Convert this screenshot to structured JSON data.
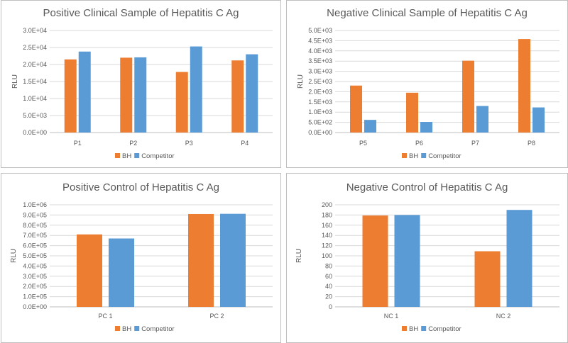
{
  "colors": {
    "BH": "#ED7D31",
    "Competitor": "#5B9BD5",
    "grid": "#d9d9d9",
    "axis": "#bfbfbf"
  },
  "chart_data": [
    {
      "type": "bar",
      "title": "Positive Clinical Sample of Hepatitis C Ag",
      "ylabel": "RLU",
      "categories": [
        "P1",
        "P2",
        "P3",
        "P4"
      ],
      "ylim": [
        0,
        30000
      ],
      "yticks": [
        "0.0E+00",
        "5.0E+03",
        "1.0E+04",
        "1.5E+04",
        "2.0E+04",
        "2.5E+04",
        "3.0E+04"
      ],
      "series": [
        {
          "name": "BH",
          "values": [
            21500,
            22000,
            17800,
            21200
          ]
        },
        {
          "name": "Competitor",
          "values": [
            23800,
            22100,
            25300,
            23000
          ]
        }
      ],
      "legend": "bottom",
      "grid": true
    },
    {
      "type": "bar",
      "title": "Negative Clinical Sample of Hepatitis C Ag",
      "ylabel": "RLU",
      "categories": [
        "P5",
        "P6",
        "P7",
        "P8"
      ],
      "ylim": [
        0,
        5000
      ],
      "yticks": [
        "0.0E+00",
        "5.0E+02",
        "1.0E+03",
        "1.5E+03",
        "2.0E+03",
        "2.5E+03",
        "3.0E+03",
        "3.5E+03",
        "4.0E+03",
        "4.5E+03",
        "5.0E+03"
      ],
      "series": [
        {
          "name": "BH",
          "values": [
            2300,
            1950,
            3520,
            4580
          ]
        },
        {
          "name": "Competitor",
          "values": [
            620,
            520,
            1300,
            1230
          ]
        }
      ],
      "legend": "bottom",
      "grid": true
    },
    {
      "type": "bar",
      "title": "Positive Control of Hepatitis C Ag",
      "ylabel": "RLU",
      "categories": [
        "PC 1",
        "PC 2"
      ],
      "ylim": [
        0,
        1000000
      ],
      "yticks": [
        "0.0E+00",
        "1.0E+05",
        "2.0E+05",
        "3.0E+05",
        "4.0E+05",
        "5.0E+05",
        "6.0E+05",
        "7.0E+05",
        "8.0E+05",
        "9.0E+05",
        "1.0E+06"
      ],
      "series": [
        {
          "name": "BH",
          "values": [
            710000,
            910000
          ]
        },
        {
          "name": "Competitor",
          "values": [
            670000,
            912000
          ]
        }
      ],
      "legend": "bottom",
      "grid": true
    },
    {
      "type": "bar",
      "title": "Negative Control of Hepatitis C Ag",
      "ylabel": "RLU",
      "categories": [
        "NC 1",
        "NC 2"
      ],
      "ylim": [
        0,
        200
      ],
      "yticks": [
        "0",
        "20",
        "40",
        "60",
        "80",
        "100",
        "120",
        "140",
        "160",
        "180",
        "200"
      ],
      "series": [
        {
          "name": "BH",
          "values": [
            179,
            109
          ]
        },
        {
          "name": "Competitor",
          "values": [
            180,
            190
          ]
        }
      ],
      "legend": "bottom",
      "grid": true
    }
  ]
}
